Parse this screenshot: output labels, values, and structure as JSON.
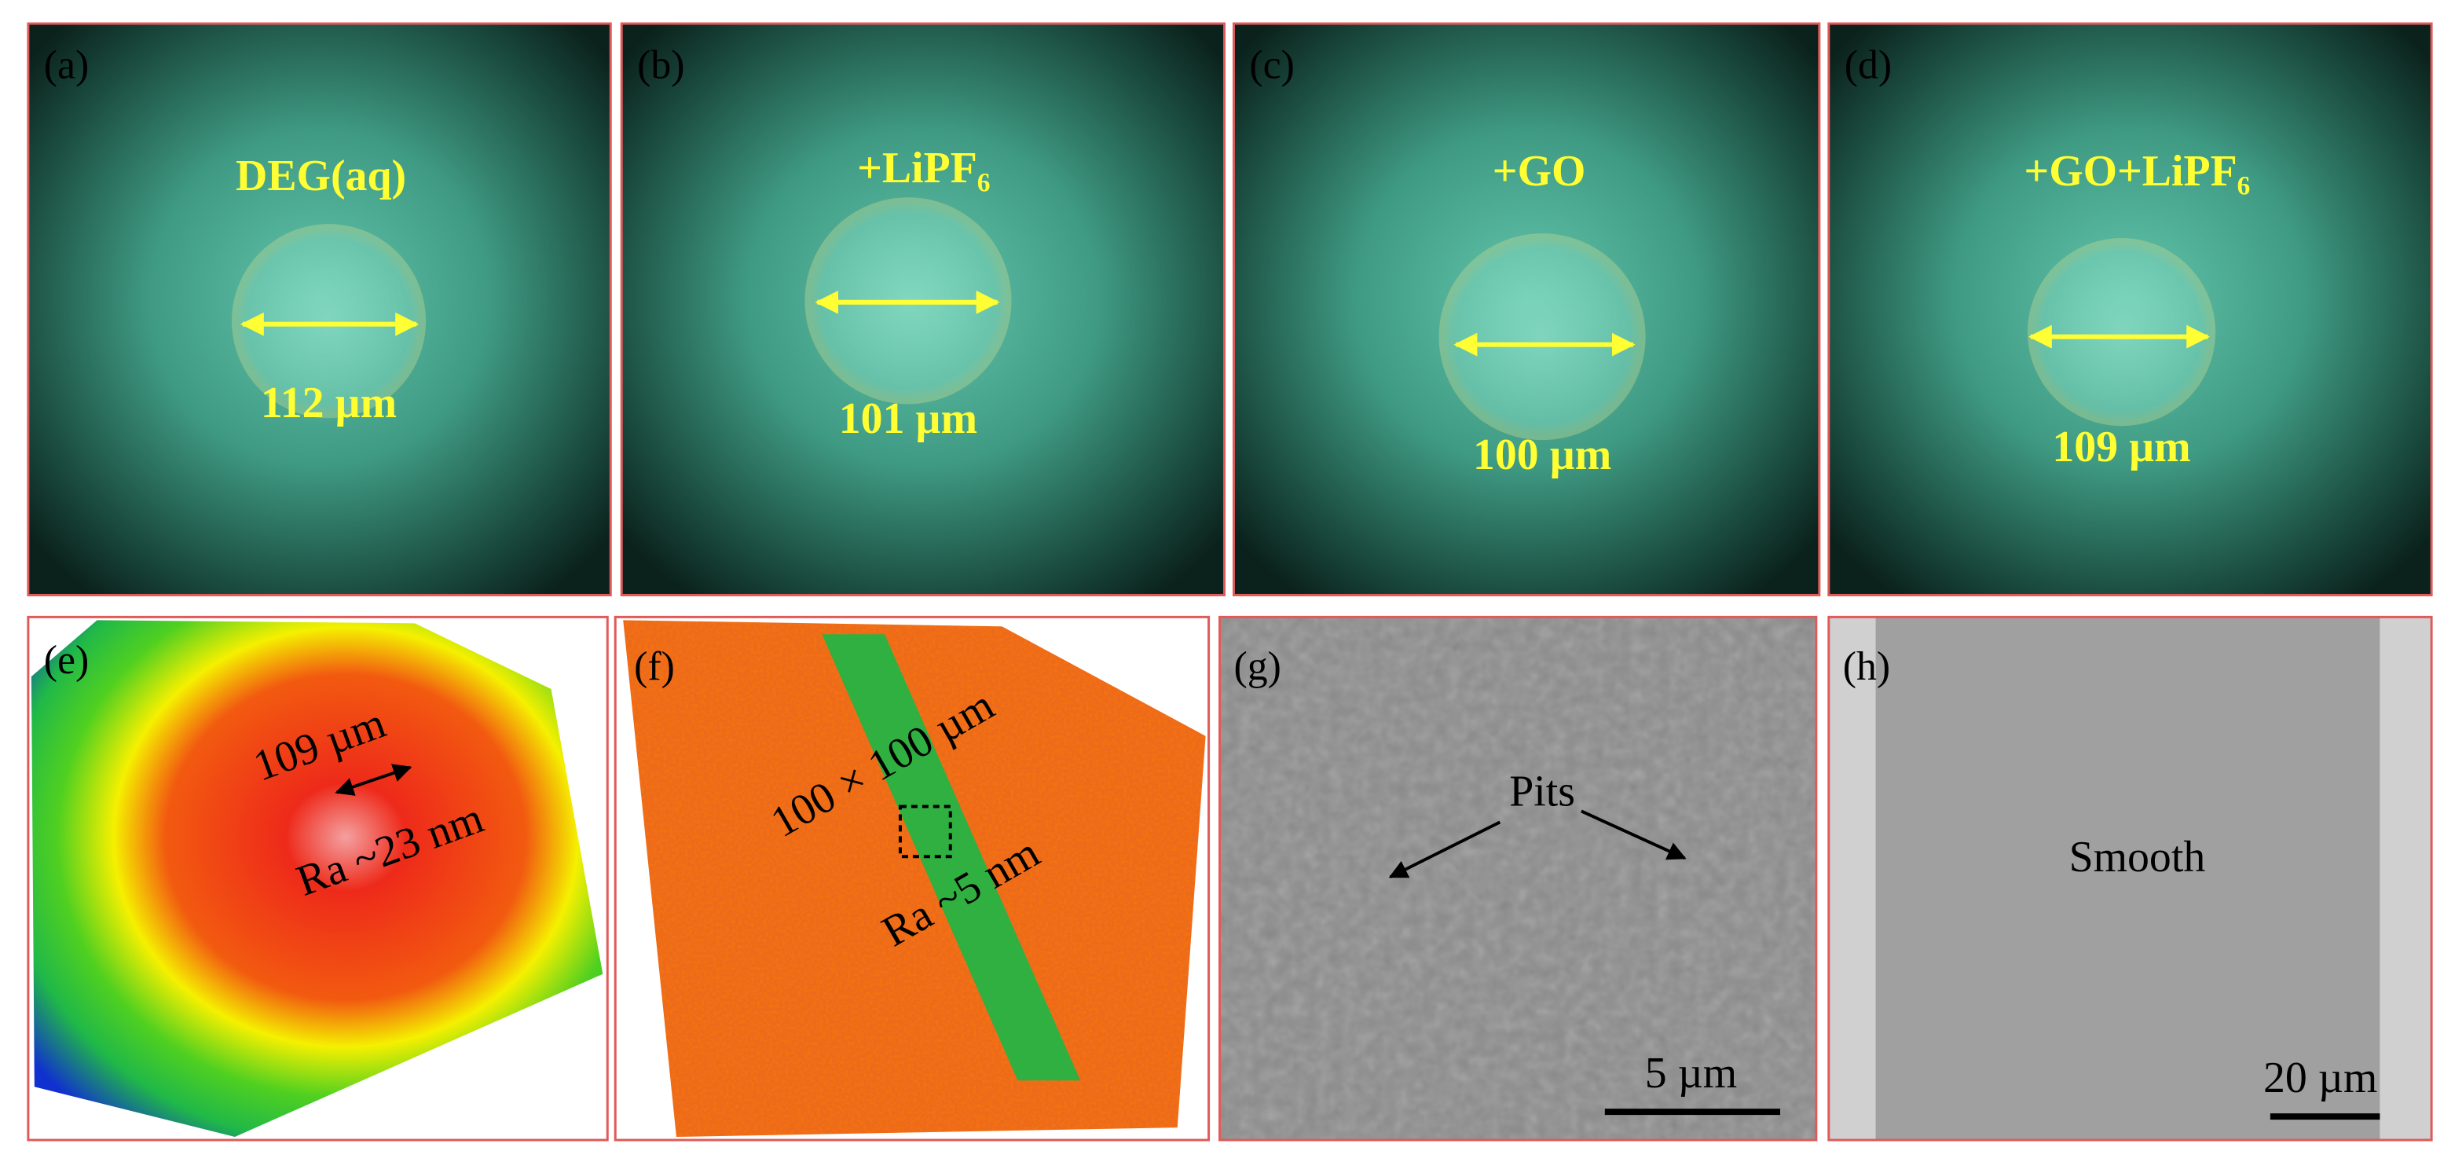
{
  "top_panels": [
    {
      "label": "(a)",
      "title": "DEG(aq)",
      "size": "112 µm"
    },
    {
      "label": "(b)",
      "title": "+LiPF₆",
      "size": "101 µm"
    },
    {
      "label": "(c)",
      "title": "+GO",
      "size": "100 µm"
    },
    {
      "label": "(d)",
      "title": "+GO+LiPF₆",
      "size": "109 µm"
    }
  ],
  "bottom_panels": [
    {
      "label": "(e)",
      "texts": [
        "109 µm",
        "Ra ~23 nm"
      ]
    },
    {
      "label": "(f)",
      "texts": [
        "100 × 100 µm",
        "Ra ~5 nm"
      ]
    },
    {
      "label": "(g)",
      "texts": [
        "Pits",
        "5 µm"
      ]
    },
    {
      "label": "(h)",
      "texts": [
        "Smooth",
        "20 µm"
      ]
    }
  ]
}
